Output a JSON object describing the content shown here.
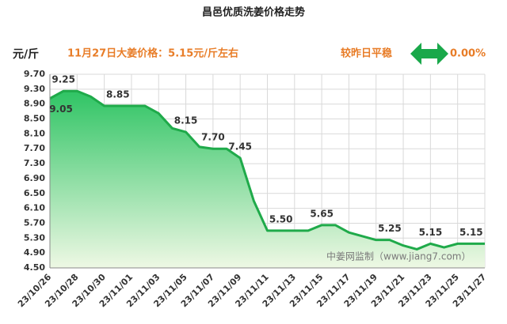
{
  "chart_data": {
    "type": "area",
    "title": "昌邑优质洗姜价格走势",
    "y_label": "元/斤",
    "annotation": "11月27日大姜价格：5.15元/斤左右",
    "status": "较昨日平稳",
    "change": "0.00%",
    "watermark": "中姜网监制（www.jiang7.com）",
    "categories": [
      "23/10/26",
      null,
      "23/10/28",
      null,
      "23/10/30",
      null,
      "23/11/01",
      null,
      "23/11/03",
      null,
      "23/11/05",
      null,
      "23/11/07",
      null,
      "23/11/09",
      null,
      "23/11/11",
      null,
      "23/11/13",
      null,
      "23/11/15",
      null,
      "23/11/17",
      null,
      "23/11/19",
      null,
      "23/11/21",
      null,
      "23/11/23",
      null,
      "23/11/25",
      null,
      "23/11/27"
    ],
    "values": [
      9.05,
      9.25,
      9.25,
      9.1,
      8.85,
      8.85,
      8.85,
      8.85,
      8.65,
      8.25,
      8.15,
      7.75,
      7.7,
      7.7,
      7.45,
      6.3,
      5.5,
      5.5,
      5.5,
      5.5,
      5.65,
      5.65,
      5.45,
      5.35,
      5.25,
      5.25,
      5.1,
      5.0,
      5.15,
      5.05,
      5.15,
      5.15,
      5.15
    ],
    "value_labels": [
      "9.05",
      "9.25",
      null,
      null,
      null,
      "8.85",
      null,
      null,
      null,
      null,
      "8.15",
      null,
      "7.70",
      null,
      "7.45",
      null,
      null,
      "5.50",
      null,
      null,
      "5.65",
      null,
      null,
      null,
      null,
      "5.25",
      null,
      null,
      "5.15",
      null,
      null,
      "5.15",
      null
    ],
    "color": "#1faa4a",
    "ylim": [
      4.5,
      9.7
    ],
    "yticks": [
      {
        "value": 4.5,
        "label": "4.50"
      },
      {
        "value": 4.9,
        "label": "4.90"
      },
      {
        "value": 5.3,
        "label": "5.30"
      },
      {
        "value": 5.7,
        "label": "5.70"
      },
      {
        "value": 6.1,
        "label": "6.10"
      },
      {
        "value": 6.5,
        "label": "6.50"
      },
      {
        "value": 6.9,
        "label": "6.90"
      },
      {
        "value": 7.3,
        "label": "7.30"
      },
      {
        "value": 7.7,
        "label": "7.70"
      },
      {
        "value": 8.1,
        "label": "8.10"
      },
      {
        "value": 8.5,
        "label": "8.50"
      },
      {
        "value": 8.9,
        "label": "8.90"
      },
      {
        "value": 9.3,
        "label": "9.30"
      },
      {
        "value": 9.7,
        "label": "9.70"
      }
    ],
    "grid": true
  }
}
